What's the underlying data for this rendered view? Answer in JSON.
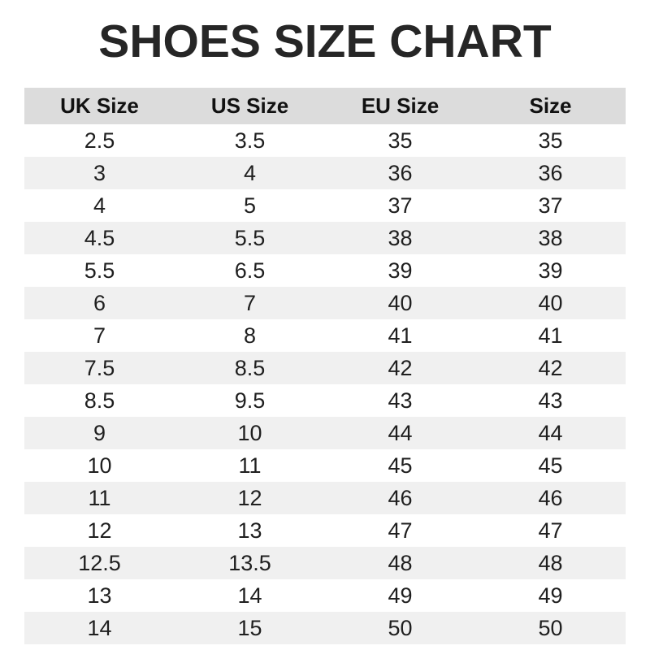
{
  "title": "SHOES SIZE CHART",
  "colors": {
    "page_bg": "#ffffff",
    "title_text": "#262626",
    "header_bg": "#dcdcdc",
    "stripe_bg": "#f0f0f0",
    "body_text": "#1f1f1f"
  },
  "chart_data": {
    "type": "table",
    "title": "SHOES SIZE CHART",
    "columns": [
      "UK Size",
      "US Size",
      "EU Size",
      "Size"
    ],
    "rows": [
      [
        "2.5",
        "3.5",
        "35",
        "35"
      ],
      [
        "3",
        "4",
        "36",
        "36"
      ],
      [
        "4",
        "5",
        "37",
        "37"
      ],
      [
        "4.5",
        "5.5",
        "38",
        "38"
      ],
      [
        "5.5",
        "6.5",
        "39",
        "39"
      ],
      [
        "6",
        "7",
        "40",
        "40"
      ],
      [
        "7",
        "8",
        "41",
        "41"
      ],
      [
        "7.5",
        "8.5",
        "42",
        "42"
      ],
      [
        "8.5",
        "9.5",
        "43",
        "43"
      ],
      [
        "9",
        "10",
        "44",
        "44"
      ],
      [
        "10",
        "11",
        "45",
        "45"
      ],
      [
        "11",
        "12",
        "46",
        "46"
      ],
      [
        "12",
        "13",
        "47",
        "47"
      ],
      [
        "12.5",
        "13.5",
        "48",
        "48"
      ],
      [
        "13",
        "14",
        "49",
        "49"
      ],
      [
        "14",
        "15",
        "50",
        "50"
      ]
    ],
    "layout": {
      "stripe_pattern": "even-rows-gray",
      "column_alignment": "center"
    }
  }
}
